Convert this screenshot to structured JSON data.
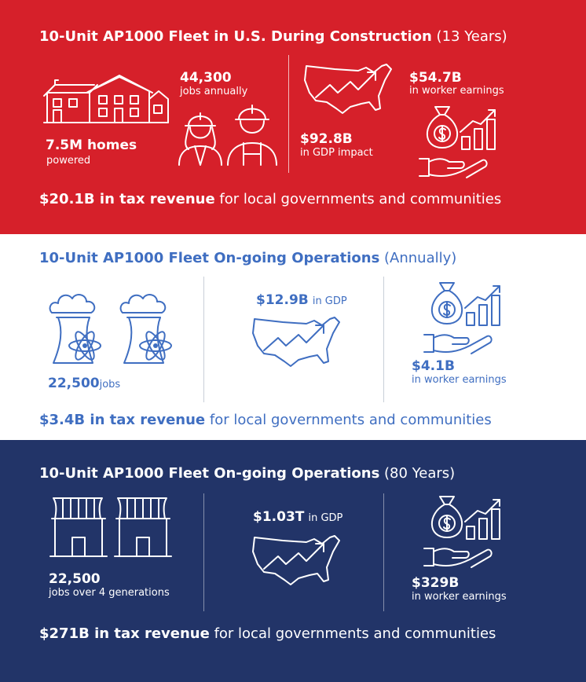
{
  "construction": {
    "title_bold": "10-Unit AP1000 Fleet in U.S. During Construction",
    "title_suffix": "(13 Years)",
    "homes_value": "7.5M homes",
    "homes_label": "powered",
    "jobs_value": "44,300",
    "jobs_label": "jobs annually",
    "gdp_value": "$92.8B",
    "gdp_label": "in GDP impact",
    "earnings_value": "$54.7B",
    "earnings_label": "in worker earnings",
    "tax_bold": "$20.1B in tax revenue",
    "tax_rest": "for local governments and communities",
    "colors": {
      "background": "#d6202a",
      "text": "#ffffff"
    }
  },
  "annual_ops": {
    "title_bold": "10-Unit AP1000 Fleet On-going Operations",
    "title_suffix": "(Annually)",
    "jobs_value": "22,500",
    "jobs_label": "jobs",
    "gdp_value": "$12.9B",
    "gdp_label": "in GDP",
    "earnings_value": "$4.1B",
    "earnings_label": "in worker earnings",
    "tax_bold": "$3.4B in tax revenue",
    "tax_rest": "for local governments and communities",
    "colors": {
      "background": "#ffffff",
      "text": "#3f6ec1"
    }
  },
  "long_ops": {
    "title_bold": "10-Unit AP1000 Fleet On-going Operations",
    "title_suffix": "(80 Years)",
    "jobs_value": "22,500",
    "jobs_label": "jobs over 4 generations",
    "gdp_value": "$1.03T",
    "gdp_label": "in GDP",
    "earnings_value": "$329B",
    "earnings_label": "in worker earnings",
    "tax_bold": "$271B in tax revenue",
    "tax_rest": "for local governments and communities",
    "colors": {
      "background": "#223468",
      "text": "#ffffff"
    }
  },
  "icons": [
    "houses-icon",
    "workers-icon",
    "us-map-growth-icon",
    "money-bag-hand-icon",
    "cooling-tower-atom-icon",
    "power-plant-icon"
  ]
}
